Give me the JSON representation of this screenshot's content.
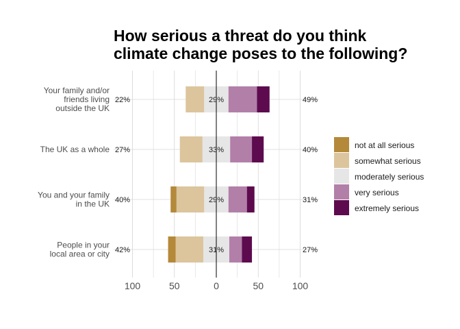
{
  "chart_data": {
    "type": "bar",
    "orientation": "horizontal-diverging",
    "title_lines": [
      "How serious a threat do you think",
      "climate change poses to the following?"
    ],
    "categories": [
      [
        "Your family and/or",
        "friends living",
        "outside the UK"
      ],
      [
        "The UK as a whole"
      ],
      [
        "You and your family",
        "in the UK"
      ],
      [
        "People in your",
        "local area or city"
      ]
    ],
    "series": [
      {
        "name": "not at all serious",
        "color": "#b5893a",
        "values": [
          0,
          0,
          7,
          9
        ]
      },
      {
        "name": "somewhat serious",
        "color": "#dcc59d",
        "values": [
          22,
          27,
          33,
          33
        ]
      },
      {
        "name": "moderately serious",
        "color": "#e6e6e6",
        "values": [
          29,
          33,
          29,
          31
        ]
      },
      {
        "name": "very serious",
        "color": "#b27fa9",
        "values": [
          34,
          26,
          22,
          15
        ]
      },
      {
        "name": "extremely serious",
        "color": "#5d0b4e",
        "values": [
          15,
          14,
          9,
          12
        ]
      }
    ],
    "left_labels": [
      "22%",
      "27%",
      "40%",
      "42%"
    ],
    "center_labels": [
      "29%",
      "33%",
      "29%",
      "31%"
    ],
    "right_labels": [
      "49%",
      "40%",
      "31%",
      "27%"
    ],
    "xlim": [
      -100,
      100
    ],
    "xticks": [
      -100,
      -50,
      0,
      50,
      100
    ],
    "xtick_labels": [
      "100",
      "50",
      "0",
      "50",
      "100"
    ],
    "legend_position": "right",
    "grid": true
  }
}
